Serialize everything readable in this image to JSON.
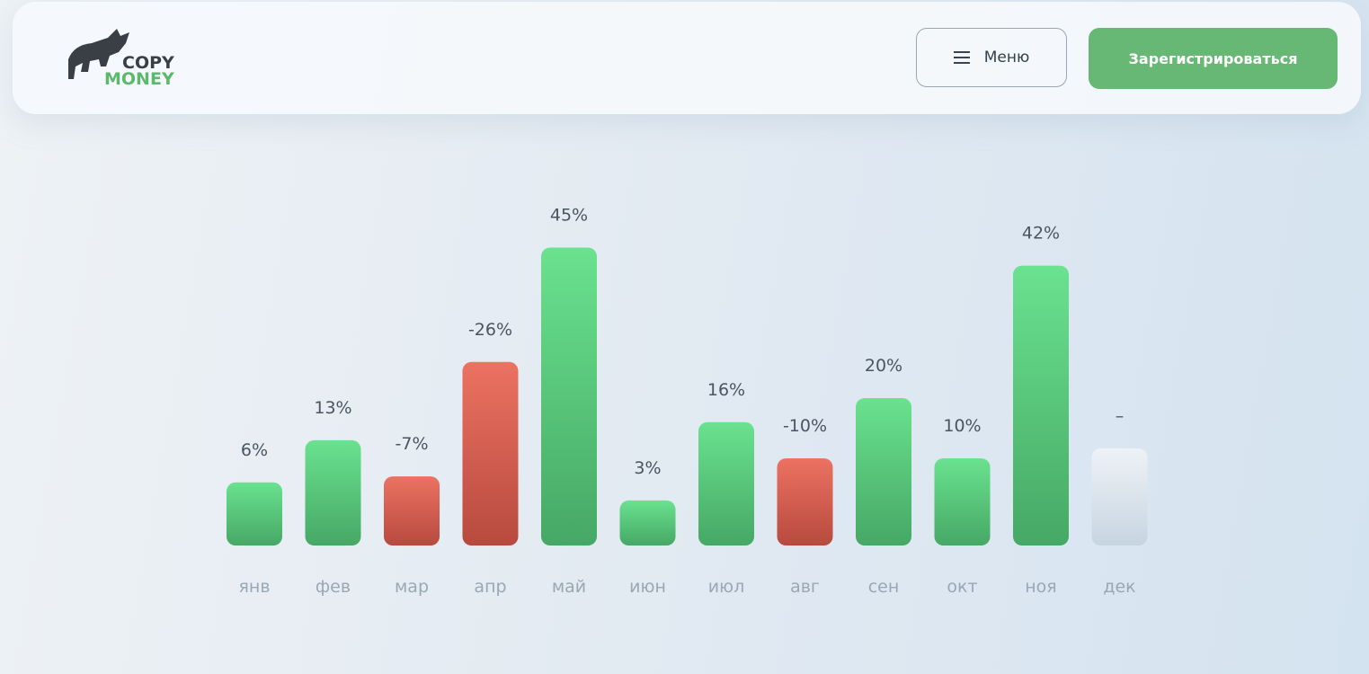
{
  "header": {
    "logo_top": "COPY",
    "logo_bottom": "MONEY",
    "menu": "Меню",
    "register": "Зарегистрироваться"
  },
  "chart_data": {
    "type": "bar",
    "categories": [
      "янв",
      "фев",
      "мар",
      "апр",
      "май",
      "июн",
      "июл",
      "авг",
      "сен",
      "окт",
      "ноя",
      "дек"
    ],
    "values": [
      6,
      13,
      -7,
      -26,
      45,
      3,
      16,
      -10,
      20,
      10,
      42,
      null
    ],
    "value_labels": [
      "6%",
      "13%",
      "-7%",
      "-26%",
      "45%",
      "3%",
      "16%",
      "-10%",
      "20%",
      "10%",
      "42%",
      "–"
    ],
    "colors": {
      "positive": "#55c57a",
      "negative": "#d9584a",
      "empty": "#d3dde6"
    }
  }
}
